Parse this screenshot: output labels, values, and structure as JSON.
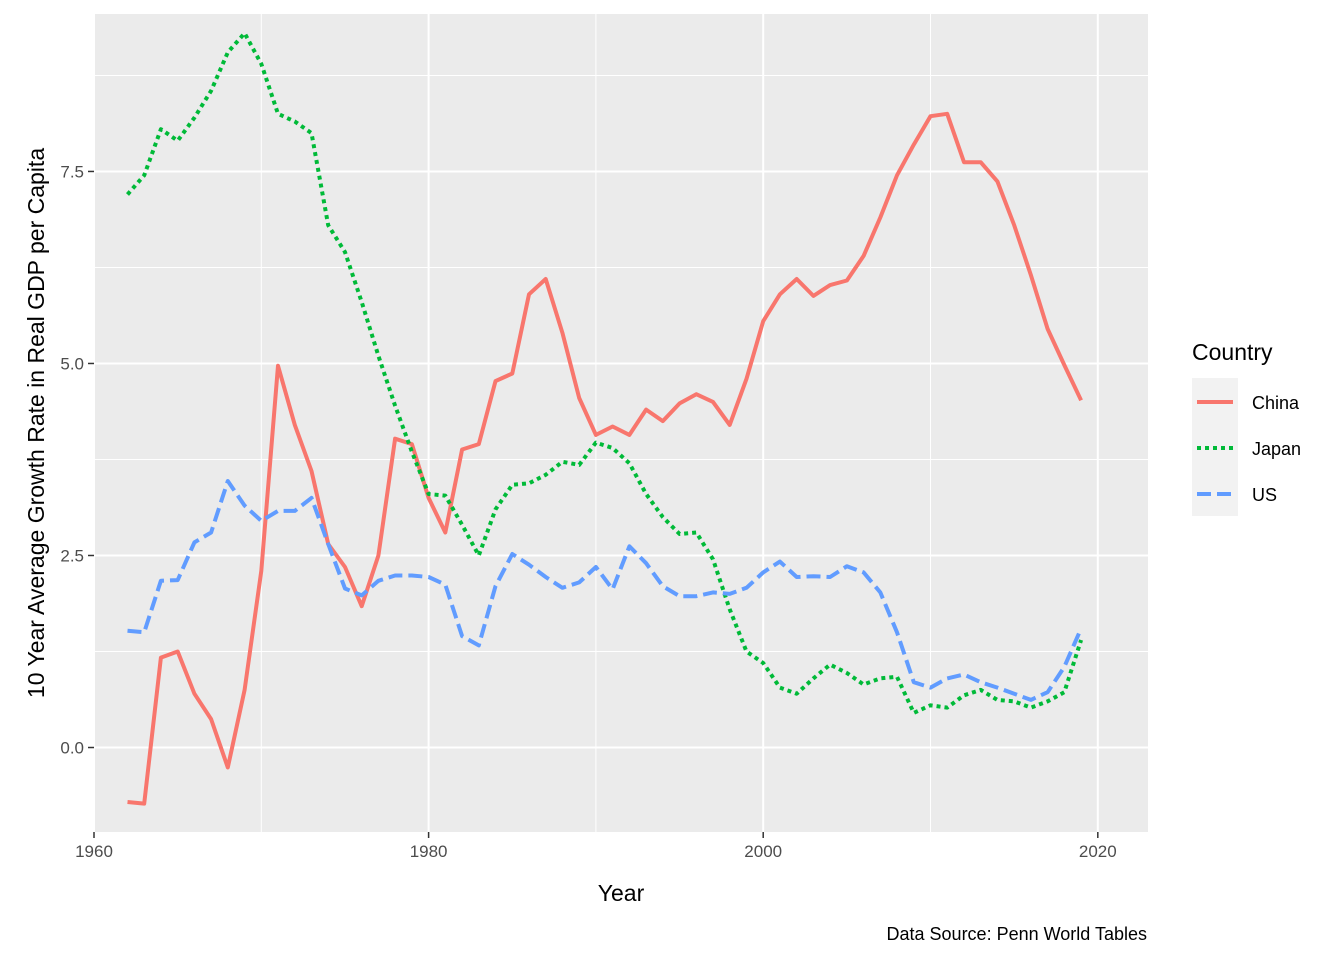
{
  "chart_data": {
    "type": "line",
    "xlabel": "Year",
    "ylabel": "10 Year Average Growth Rate in Real GDP per Capita",
    "caption": "Data Source: Penn World Tables",
    "xlim": [
      1960,
      2023
    ],
    "ylim": [
      -1.1,
      9.55
    ],
    "x_ticks": [
      1960,
      1980,
      2000,
      2020
    ],
    "y_ticks": [
      0,
      2.5,
      5,
      7.5
    ],
    "y_tick_labels": [
      "0.0",
      "2.5",
      "5.0",
      "7.5"
    ],
    "grid": true,
    "legend": {
      "title": "Country",
      "position": "right"
    },
    "x": [
      1962,
      1963,
      1964,
      1965,
      1966,
      1967,
      1968,
      1969,
      1970,
      1971,
      1972,
      1973,
      1974,
      1975,
      1976,
      1977,
      1978,
      1979,
      1980,
      1981,
      1982,
      1983,
      1984,
      1985,
      1986,
      1987,
      1988,
      1989,
      1990,
      1991,
      1992,
      1993,
      1994,
      1995,
      1996,
      1997,
      1998,
      1999,
      2000,
      2001,
      2002,
      2003,
      2004,
      2005,
      2006,
      2007,
      2008,
      2009,
      2010,
      2011,
      2012,
      2013,
      2014,
      2015,
      2016,
      2017,
      2018,
      2019
    ],
    "series": [
      {
        "name": "China",
        "color": "#F8766D",
        "dash": "solid",
        "values": [
          -0.71,
          -0.73,
          1.17,
          1.25,
          0.7,
          0.37,
          -0.26,
          0.75,
          2.3,
          4.97,
          4.2,
          3.6,
          2.65,
          2.35,
          1.84,
          2.5,
          4.02,
          3.95,
          3.25,
          2.8,
          3.88,
          3.95,
          4.77,
          4.87,
          5.9,
          6.1,
          5.4,
          4.55,
          4.07,
          4.18,
          4.07,
          4.4,
          4.25,
          4.48,
          4.6,
          4.5,
          4.2,
          4.8,
          5.55,
          5.9,
          6.1,
          5.88,
          6.02,
          6.08,
          6.4,
          6.9,
          7.45,
          7.85,
          8.22,
          8.25,
          7.62,
          7.62,
          7.37,
          6.8,
          6.15,
          5.45,
          4.98,
          4.52
        ]
      },
      {
        "name": "Japan",
        "color": "#00BA38",
        "dash": "dotted",
        "values": [
          7.2,
          7.45,
          8.05,
          7.9,
          8.2,
          8.55,
          9.05,
          9.3,
          8.9,
          8.25,
          8.15,
          8.0,
          6.8,
          6.45,
          5.8,
          5.1,
          4.45,
          3.85,
          3.3,
          3.28,
          2.9,
          2.5,
          3.1,
          3.42,
          3.44,
          3.55,
          3.72,
          3.68,
          3.97,
          3.9,
          3.7,
          3.3,
          3.0,
          2.78,
          2.8,
          2.45,
          1.8,
          1.25,
          1.1,
          0.78,
          0.7,
          0.9,
          1.08,
          0.97,
          0.82,
          0.9,
          0.92,
          0.45,
          0.55,
          0.52,
          0.68,
          0.75,
          0.62,
          0.6,
          0.52,
          0.6,
          0.72,
          1.4
        ]
      },
      {
        "name": "US",
        "color": "#619CFF",
        "dash": "dashed",
        "values": [
          1.52,
          1.5,
          2.17,
          2.18,
          2.67,
          2.8,
          3.47,
          3.15,
          2.95,
          3.08,
          3.08,
          3.25,
          2.65,
          2.07,
          1.98,
          2.17,
          2.24,
          2.24,
          2.22,
          2.12,
          1.45,
          1.33,
          2.1,
          2.52,
          2.38,
          2.22,
          2.08,
          2.15,
          2.35,
          2.06,
          2.62,
          2.4,
          2.1,
          1.97,
          1.97,
          2.02,
          2.0,
          2.08,
          2.28,
          2.42,
          2.22,
          2.23,
          2.22,
          2.36,
          2.28,
          2.02,
          1.5,
          0.85,
          0.78,
          0.9,
          0.95,
          0.85,
          0.78,
          0.7,
          0.62,
          0.72,
          1.05,
          1.55
        ]
      }
    ]
  }
}
